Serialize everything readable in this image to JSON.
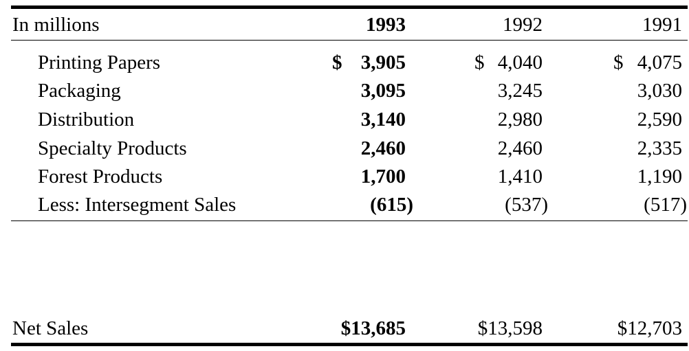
{
  "header": {
    "label": "In millions",
    "y1993": "1993",
    "y1992": "1992",
    "y1991": "1991"
  },
  "rows": [
    {
      "label": "Printing Papers",
      "v1993": "3,905",
      "v1992": "4,040",
      "v1991": "4,075",
      "dollar": "$"
    },
    {
      "label": "Packaging",
      "v1993": "3,095",
      "v1992": "3,245",
      "v1991": "3,030"
    },
    {
      "label": "Distribution",
      "v1993": "3,140",
      "v1992": "2,980",
      "v1991": "2,590"
    },
    {
      "label": "Specialty Products",
      "v1993": "2,460",
      "v1992": "2,460",
      "v1991": "2,335"
    },
    {
      "label": "Forest Products",
      "v1993": "1,700",
      "v1992": "1,410",
      "v1991": "1,190"
    },
    {
      "label": "Less: Intersegment Sales",
      "v1993": "(615)",
      "v1992": "(537)",
      "v1991": "(517)"
    }
  ],
  "total": {
    "label": "Net Sales",
    "v1993": "$13,685",
    "v1992": "$13,598",
    "v1991": "$12,703"
  }
}
